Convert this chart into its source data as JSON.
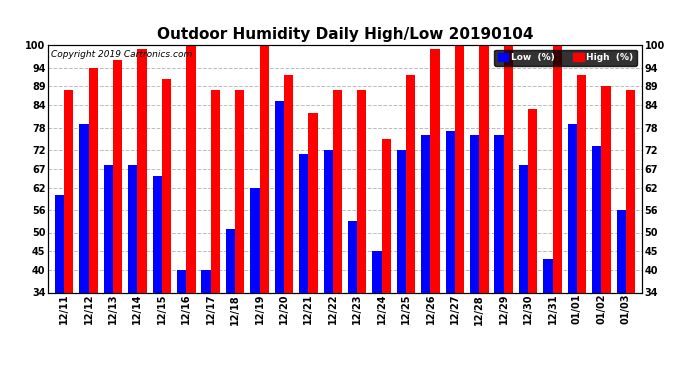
{
  "title": "Outdoor Humidity Daily High/Low 20190104",
  "copyright": "Copyright 2019 Cartronics.com",
  "categories": [
    "12/11",
    "12/12",
    "12/13",
    "12/14",
    "12/15",
    "12/16",
    "12/17",
    "12/18",
    "12/19",
    "12/20",
    "12/21",
    "12/22",
    "12/23",
    "12/24",
    "12/25",
    "12/26",
    "12/27",
    "12/28",
    "12/29",
    "12/30",
    "12/31",
    "01/01",
    "01/02",
    "01/03"
  ],
  "high_values": [
    88,
    94,
    96,
    99,
    91,
    100,
    88,
    88,
    100,
    92,
    82,
    88,
    88,
    75,
    92,
    99,
    100,
    100,
    100,
    83,
    100,
    92,
    89,
    88
  ],
  "low_values": [
    60,
    79,
    68,
    68,
    65,
    40,
    40,
    51,
    62,
    85,
    71,
    72,
    53,
    45,
    72,
    76,
    77,
    76,
    76,
    68,
    43,
    79,
    73,
    56
  ],
  "high_color": "#ff0000",
  "low_color": "#0000ff",
  "bg_color": "#ffffff",
  "plot_bg_color": "#ffffff",
  "ylim_min": 34,
  "ylim_max": 100,
  "yticks": [
    34,
    40,
    45,
    50,
    56,
    62,
    67,
    72,
    78,
    84,
    89,
    94,
    100
  ],
  "grid_color": "#bbbbbb",
  "title_fontsize": 11,
  "axis_fontsize": 7,
  "bar_width": 0.38,
  "legend_low_label": "Low  (%)",
  "legend_high_label": "High  (%)"
}
